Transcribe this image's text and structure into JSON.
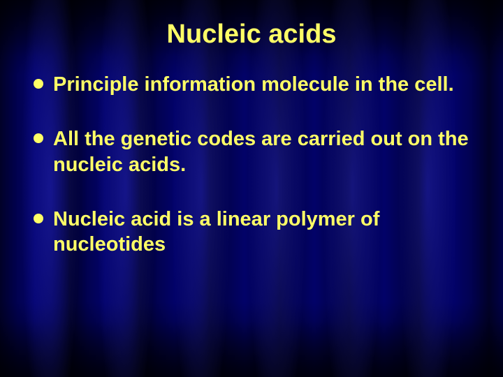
{
  "slide": {
    "title": "Nucleic acids",
    "title_color": "#ffff66",
    "title_fontsize": 38,
    "bullet_color": "#ffff66",
    "body_color": "#ffff66",
    "body_fontsize": 29,
    "background_base": "#101080",
    "bullets": [
      {
        "text": "Principle information molecule in the cell."
      },
      {
        "text": "All the genetic codes are carried out on the nucleic acids."
      },
      {
        "text": "Nucleic acid is a linear polymer of nucleotides"
      }
    ]
  }
}
